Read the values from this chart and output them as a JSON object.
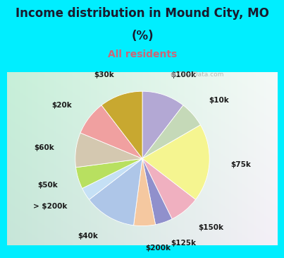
{
  "title_line1": "Income distribution in Mound City, MO",
  "title_line2": "(%)",
  "subtitle": "All residents",
  "title_color": "#1a1a2e",
  "subtitle_color": "#cc6677",
  "bg_outer": "#00eeff",
  "bg_panel_tl": "#c8eed8",
  "bg_panel_br": "#e8f8f8",
  "watermark": "City-Data.com",
  "slices": [
    {
      "label": "$100k",
      "value": 10,
      "color": "#b3a8d4"
    },
    {
      "label": "$10k",
      "value": 6,
      "color": "#c5d9b8"
    },
    {
      "label": "$75k",
      "value": 18,
      "color": "#f5f590"
    },
    {
      "label": "$150k",
      "value": 7,
      "color": "#f0b0c0"
    },
    {
      "label": "$125k",
      "value": 4,
      "color": "#9090cc"
    },
    {
      "label": "$200k",
      "value": 5,
      "color": "#f5c8a0"
    },
    {
      "label": "$40k",
      "value": 12,
      "color": "#aec6e8"
    },
    {
      "label": "> $200k",
      "value": 3,
      "color": "#c5e0f5"
    },
    {
      "label": "$50k",
      "value": 5,
      "color": "#b8e060"
    },
    {
      "label": "$60k",
      "value": 8,
      "color": "#d4c8b0"
    },
    {
      "label": "$20k",
      "value": 8,
      "color": "#f0a0a0"
    },
    {
      "label": "$30k",
      "value": 10,
      "color": "#c8a830"
    }
  ],
  "title_fontsize": 12,
  "subtitle_fontsize": 10,
  "label_fontsize": 7.5
}
